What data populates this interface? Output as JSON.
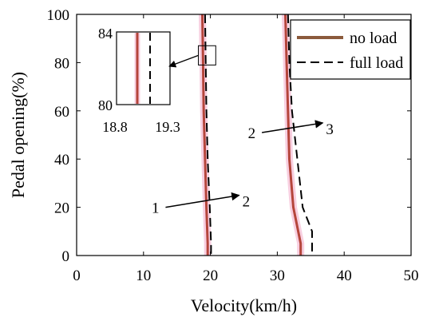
{
  "chart_data": {
    "type": "line",
    "xlabel": "Velocity(km/h)",
    "ylabel": "Pedal opening(%)",
    "xlim": [
      0,
      50
    ],
    "ylim": [
      0,
      100
    ],
    "xticks": [
      0,
      10,
      20,
      30,
      40,
      50
    ],
    "yticks": [
      0,
      20,
      40,
      60,
      80,
      100
    ],
    "grid": false,
    "legend_position": "top-right",
    "colors": {
      "no_load": "#b5453b",
      "no_load_legend": "#8b5a3c",
      "full_load": "#000000",
      "pink_halo": "#f2a7c7"
    },
    "series": [
      {
        "name": "no load",
        "style": "solid",
        "group": "gear-1-2",
        "points": [
          [
            18.8,
            100
          ],
          [
            18.9,
            80
          ],
          [
            19.0,
            60
          ],
          [
            19.2,
            40
          ],
          [
            19.4,
            20
          ],
          [
            19.6,
            5
          ],
          [
            19.6,
            0
          ]
        ]
      },
      {
        "name": "no load",
        "style": "solid",
        "group": "gear-2-3",
        "points": [
          [
            31.2,
            100
          ],
          [
            31.4,
            80
          ],
          [
            31.6,
            60
          ],
          [
            31.8,
            40
          ],
          [
            32.4,
            20
          ],
          [
            33.5,
            5
          ],
          [
            33.5,
            0
          ]
        ]
      },
      {
        "name": "full load",
        "style": "dashed",
        "group": "gear-1-2",
        "points": [
          [
            19.2,
            100
          ],
          [
            19.3,
            80
          ],
          [
            19.4,
            60
          ],
          [
            19.6,
            40
          ],
          [
            19.9,
            20
          ],
          [
            20.1,
            5
          ],
          [
            20.1,
            0
          ]
        ]
      },
      {
        "name": "full load",
        "style": "dashed",
        "group": "gear-2-3",
        "points": [
          [
            31.6,
            100
          ],
          [
            31.8,
            80
          ],
          [
            32.2,
            60
          ],
          [
            33.0,
            40
          ],
          [
            33.8,
            20
          ],
          [
            35.2,
            10
          ],
          [
            35.2,
            0
          ]
        ]
      }
    ],
    "annotations": [
      {
        "from_label": "1",
        "to_label": "2",
        "from": [
          13.3,
          20
        ],
        "to": [
          24.3,
          25
        ]
      },
      {
        "from_label": "2",
        "to_label": "3",
        "from": [
          27.7,
          51
        ],
        "to": [
          36.8,
          55
        ]
      }
    ],
    "inset": {
      "xlabels": [
        "18.8",
        "19.3"
      ],
      "ylabels": [
        "84",
        "80"
      ],
      "zoom_box_x": [
        18.2,
        20.8
      ],
      "zoom_box_y": [
        79,
        87
      ],
      "no_load_x": 18.8,
      "full_load_x": 19.3
    }
  }
}
